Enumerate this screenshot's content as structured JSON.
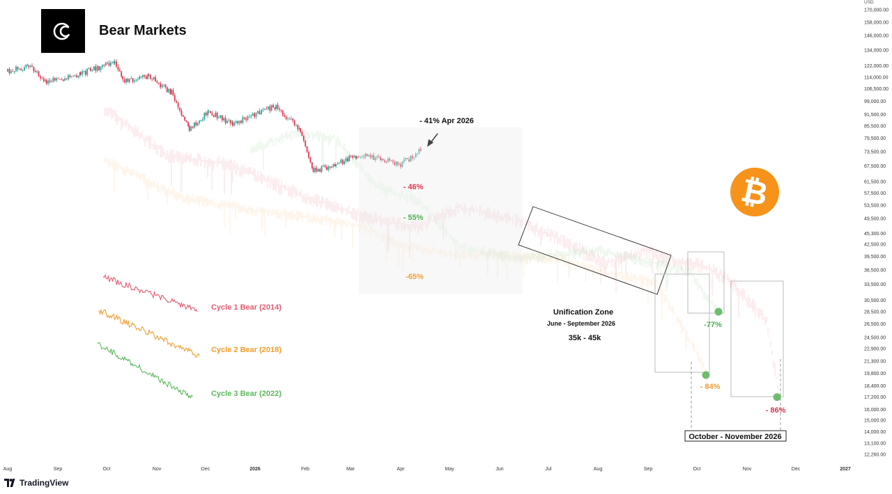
{
  "header": {
    "title": "Bear Markets",
    "logo_icon": "cc-brand-logo-icon"
  },
  "footer": {
    "brand": "TradingView",
    "logo_icon": "tradingview-logo-icon"
  },
  "decor": {
    "coin_icon": "bitcoin-icon",
    "coin_symbol": "₿",
    "coin_color": "#f7931a"
  },
  "colors": {
    "up": "#26a69a",
    "down": "#e0344a",
    "cycle1": "#e35a6f",
    "cycle2": "#f39c2a",
    "cycle3": "#5cb85c"
  },
  "chart_data": {
    "type": "candlestick",
    "y_axis": {
      "unit": "USD",
      "scale": "log",
      "ticks": [
        "170,000.00",
        "158,000.00",
        "146,000.00",
        "134,000.00",
        "122,000.00",
        "114,000.00",
        "106,500.00",
        "99,000.00",
        "91,500.00",
        "85,500.00",
        "79,500.00",
        "73,500.00",
        "67,500.00",
        "61,500.00",
        "57,500.00",
        "53,500.00",
        "49,500.00",
        "45,300.00",
        "42,500.00",
        "39,500.00",
        "36,500.00",
        "33,500.00",
        "30,500.00",
        "28,500.00",
        "26,500.00",
        "24,500.00",
        "22,900.00",
        "21,300.00",
        "19,800.00",
        "18,400.00",
        "17,200.00",
        "16,000.00",
        "15,000.00",
        "14,000.00",
        "13,100.00",
        "12,260.00"
      ]
    },
    "x_axis": {
      "ticks": [
        "Aug",
        "Sep",
        "Oct",
        "Nov",
        "Dec",
        "2026",
        "Feb",
        "Mar",
        "Apr",
        "May",
        "Jun",
        "Jul",
        "Aug",
        "Sep",
        "Oct",
        "Nov",
        "Dec",
        "2027"
      ]
    },
    "price_path": [
      [
        "2025-08-01",
        118000
      ],
      [
        "2025-08-14",
        122000
      ],
      [
        "2025-08-25",
        111000
      ],
      [
        "2025-09-15",
        116500
      ],
      [
        "2025-10-06",
        125000
      ],
      [
        "2025-10-11",
        111000
      ],
      [
        "2025-10-27",
        115000
      ],
      [
        "2025-11-10",
        104000
      ],
      [
        "2025-11-21",
        84500
      ],
      [
        "2025-12-03",
        93000
      ],
      [
        "2025-12-18",
        86500
      ],
      [
        "2026-01-05",
        93500
      ],
      [
        "2026-01-14",
        96000
      ],
      [
        "2026-01-29",
        83000
      ],
      [
        "2026-02-06",
        65500
      ],
      [
        "2026-02-20",
        68000
      ],
      [
        "2026-03-05",
        72000
      ],
      [
        "2026-03-20",
        70000
      ],
      [
        "2026-04-01",
        68000
      ],
      [
        "2026-04-14",
        74500
      ]
    ],
    "series": [
      {
        "name": "Cycle 1 Bear (2014)",
        "color": "#e35a6f"
      },
      {
        "name": "Cycle 2 Bear (2018)",
        "color": "#f39c2a"
      },
      {
        "name": "Cycle 3 Bear (2022)",
        "color": "#5cb85c"
      }
    ],
    "annotations": {
      "current": "- 41% Apr 2026",
      "drawdowns": [
        {
          "label": "- 46%",
          "color": "#e0344a"
        },
        {
          "label": "- 55%",
          "color": "#4caf50"
        },
        {
          "label": "-65%",
          "color": "#f39c2a"
        }
      ],
      "zone_title": "Unification Zone",
      "zone_dates": "June - September 2026",
      "zone_range": "35k - 45k",
      "lows": [
        {
          "label": "-77%",
          "color": "#4caf50",
          "price": 28500
        },
        {
          "label": "- 84%",
          "color": "#f39c2a",
          "price": 19600
        },
        {
          "label": "- 86%",
          "color": "#e0344a",
          "price": 17200
        }
      ],
      "bottom_window": "October - November 2026"
    }
  }
}
